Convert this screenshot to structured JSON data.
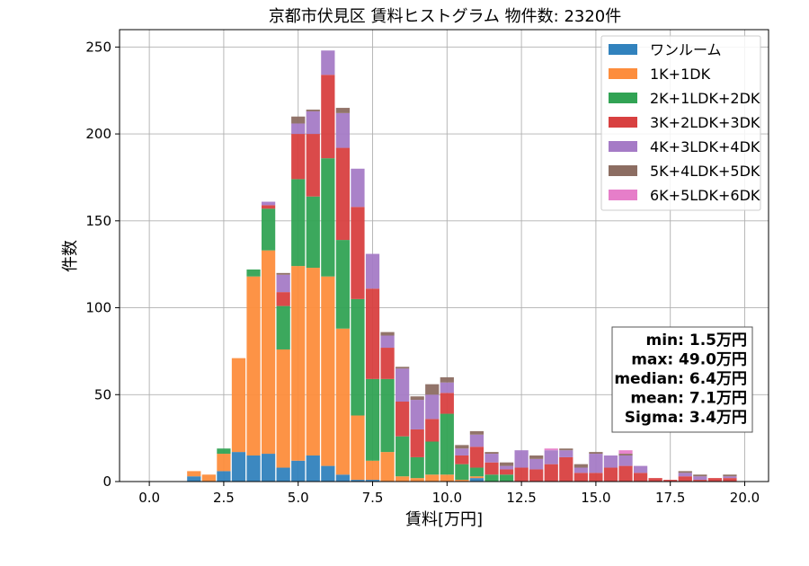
{
  "chart_data": {
    "type": "bar",
    "stacked": true,
    "title": "京都市伏見区 賃料ヒストグラム  物件数: 2320件",
    "xlabel": "賃料[万円]",
    "ylabel": "件数",
    "xlim": [
      -1.0,
      20.8
    ],
    "ylim": [
      0,
      260
    ],
    "xticks": [
      0.0,
      2.5,
      5.0,
      7.5,
      10.0,
      12.5,
      15.0,
      17.5,
      20.0
    ],
    "xtick_labels": [
      "0.0",
      "2.5",
      "5.0",
      "7.5",
      "10.0",
      "12.5",
      "15.0",
      "17.5",
      "20.0"
    ],
    "yticks": [
      0,
      50,
      100,
      150,
      200,
      250
    ],
    "ytick_labels": [
      "0",
      "50",
      "100",
      "150",
      "200",
      "250"
    ],
    "grid": true,
    "legend_position": "top-right",
    "bin_width": 0.5,
    "x": [
      1.5,
      2.0,
      2.5,
      3.0,
      3.5,
      4.0,
      4.5,
      5.0,
      5.5,
      6.0,
      6.5,
      7.0,
      7.5,
      8.0,
      8.5,
      9.0,
      9.5,
      10.0,
      10.5,
      11.0,
      11.5,
      12.0,
      12.5,
      13.0,
      13.5,
      14.0,
      14.5,
      15.0,
      15.5,
      16.0,
      16.5,
      17.0,
      17.5,
      18.0,
      18.5,
      19.0,
      19.5
    ],
    "series": [
      {
        "name": "ワンルーム",
        "color": "#3182bd",
        "values": [
          3,
          0,
          6,
          17,
          15,
          16,
          8,
          12,
          15,
          9,
          4,
          1,
          1,
          0,
          0,
          0,
          0,
          0,
          0,
          2,
          0,
          0,
          0,
          0,
          0,
          0,
          0,
          0,
          0,
          0,
          0,
          0,
          0,
          0,
          0,
          0,
          0
        ]
      },
      {
        "name": "1K+1DK",
        "color": "#fd8d3c",
        "values": [
          3,
          4,
          10,
          54,
          103,
          117,
          68,
          112,
          108,
          109,
          84,
          37,
          11,
          17,
          3,
          2,
          4,
          4,
          1,
          1,
          0,
          0,
          0,
          0,
          0,
          0,
          0,
          0,
          0,
          0,
          0,
          0,
          0,
          0,
          0,
          0,
          0
        ]
      },
      {
        "name": "2K+1LDK+2DK",
        "color": "#31a354",
        "values": [
          0,
          0,
          3,
          0,
          4,
          24,
          25,
          50,
          41,
          68,
          51,
          67,
          47,
          42,
          23,
          12,
          19,
          35,
          9,
          5,
          4,
          4,
          0,
          0,
          0,
          0,
          0,
          0,
          0,
          0,
          0,
          0,
          0,
          0,
          0,
          0,
          0
        ]
      },
      {
        "name": "3K+2LDK+3DK",
        "color": "#d84040",
        "values": [
          0,
          0,
          0,
          0,
          0,
          2,
          8,
          26,
          36,
          48,
          53,
          53,
          52,
          18,
          20,
          16,
          13,
          12,
          5,
          12,
          7,
          3,
          8,
          7,
          10,
          14,
          5,
          5,
          8,
          9,
          5,
          2,
          1,
          3,
          1,
          2,
          2
        ]
      },
      {
        "name": "4K+3LDK+4DK",
        "color": "#a57bc6",
        "values": [
          0,
          0,
          0,
          0,
          0,
          2,
          10,
          6,
          13,
          14,
          20,
          22,
          20,
          7,
          19,
          17,
          14,
          6,
          4,
          7,
          5,
          2,
          10,
          6,
          8,
          4,
          3,
          11,
          7,
          6,
          4,
          0,
          0,
          2,
          2,
          0,
          1
        ]
      },
      {
        "name": "5K+4LDK+5DK",
        "color": "#8c6d62",
        "values": [
          0,
          0,
          0,
          0,
          0,
          0,
          1,
          4,
          1,
          0,
          3,
          0,
          0,
          2,
          1,
          2,
          6,
          3,
          2,
          2,
          1,
          2,
          0,
          2,
          0,
          1,
          2,
          1,
          0,
          1,
          0,
          0,
          0,
          1,
          1,
          0,
          1
        ]
      },
      {
        "name": "6K+5LDK+6DK",
        "color": "#e67ec9",
        "values": [
          0,
          0,
          0,
          0,
          0,
          0,
          0,
          0,
          0,
          0,
          0,
          0,
          0,
          0,
          0,
          0,
          0,
          0,
          0,
          0,
          0,
          0,
          0,
          0,
          1,
          0,
          0,
          0,
          0,
          2,
          0,
          0,
          0,
          0,
          0,
          0,
          0
        ]
      }
    ],
    "annotations": [
      "min: 1.5万円",
      "max: 49.0万円",
      "median: 6.4万円",
      "mean: 7.1万円",
      "Sigma: 3.4万円"
    ]
  }
}
